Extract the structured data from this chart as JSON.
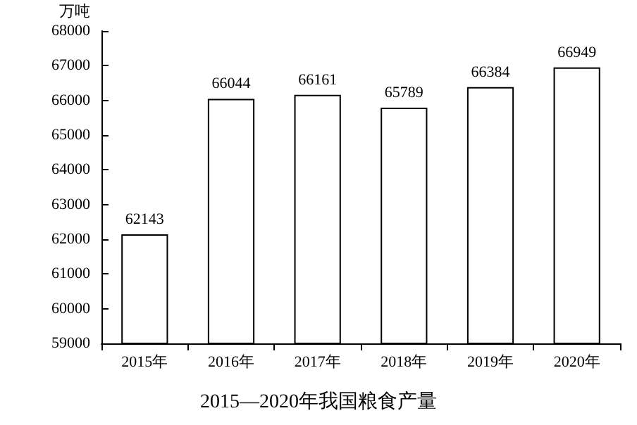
{
  "chart_data": {
    "type": "bar",
    "title": "2015—2020年我国粮食产量",
    "ylabel": "万吨",
    "categories": [
      "2015年",
      "2016年",
      "2017年",
      "2018年",
      "2019年",
      "2020年"
    ],
    "values": [
      62143,
      66044,
      66161,
      65789,
      66384,
      66949
    ],
    "color": "#ffffff",
    "ylim": [
      59000,
      68000
    ],
    "yticks": [
      59000,
      60000,
      61000,
      62000,
      63000,
      64000,
      65000,
      66000,
      67000,
      68000
    ],
    "grid": false,
    "data_labels": true
  }
}
